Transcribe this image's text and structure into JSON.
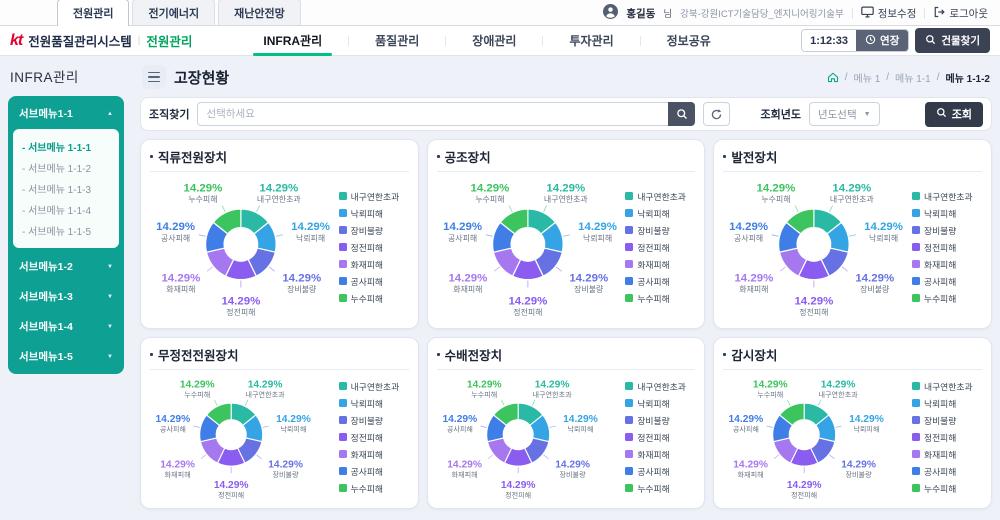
{
  "header": {
    "tabs": [
      {
        "label": "전원관리",
        "active": true
      },
      {
        "label": "전기에너지",
        "active": false
      },
      {
        "label": "재난안전망",
        "active": false
      }
    ],
    "user": {
      "name": "홍길동",
      "suffix": "님",
      "dept": "강북-강원ICT기술담당_엔지니어링기술부"
    },
    "actions": {
      "edit_info": "정보수정",
      "logout": "로그아웃"
    }
  },
  "appbar": {
    "logo": "kt",
    "system_title": "전원품질관리시스템",
    "module": "전원관리",
    "nav": [
      {
        "label": "INFRA관리",
        "active": true
      },
      {
        "label": "품질관리",
        "active": false
      },
      {
        "label": "장애관리",
        "active": false
      },
      {
        "label": "투자관리",
        "active": false
      },
      {
        "label": "정보공유",
        "active": false
      }
    ],
    "session_timer": "1:12:33",
    "extend_label": "연장",
    "building_search_label": "건물찾기"
  },
  "sidebar": {
    "title": "INFRA관리",
    "item_prefix": "- ",
    "menus": [
      {
        "label": "서브메뉴1-1",
        "expanded": true,
        "children": [
          {
            "label": "서브메뉴 1-1-1",
            "active": true
          },
          {
            "label": "서브메뉴 1-1-2",
            "active": false
          },
          {
            "label": "서브메뉴 1-1-3",
            "active": false
          },
          {
            "label": "서브메뉴 1-1-4",
            "active": false
          },
          {
            "label": "서브메뉴 1-1-5",
            "active": false
          }
        ]
      },
      {
        "label": "서브메뉴1-2",
        "expanded": false,
        "children": []
      },
      {
        "label": "서브메뉴1-3",
        "expanded": false,
        "children": []
      },
      {
        "label": "서브메뉴1-4",
        "expanded": false,
        "children": []
      },
      {
        "label": "서브메뉴1-5",
        "expanded": false,
        "children": []
      }
    ]
  },
  "content": {
    "page_title": "고장현황",
    "breadcrumb": [
      "메뉴 1",
      "메뉴 1-1",
      "메뉴 1-1-2"
    ],
    "filter": {
      "org_label": "조직찾기",
      "org_placeholder": "선택하세요",
      "year_label": "조회년도",
      "year_value": "년도선택",
      "search_label": "조회"
    }
  },
  "chart_colors": [
    "#29b9a4",
    "#34a4e4",
    "#6672e4",
    "#8a5cf0",
    "#a678f0",
    "#3f7ee6",
    "#3cc45e"
  ],
  "chart_data": [
    {
      "type": "pie",
      "title": "직류전원장치",
      "unit": "%",
      "legend_position": "right",
      "categories": [
        "내구연한초과",
        "낙뢰피해",
        "장비불량",
        "정전피해",
        "화재피해",
        "공사피해",
        "누수피해"
      ],
      "values": [
        14.29,
        14.29,
        14.29,
        14.29,
        14.29,
        14.29,
        14.29
      ],
      "colors": [
        "#29b9a4",
        "#34a4e4",
        "#6672e4",
        "#8a5cf0",
        "#a678f0",
        "#3f7ee6",
        "#3cc45e"
      ]
    },
    {
      "type": "pie",
      "title": "공조장치",
      "unit": "%",
      "legend_position": "right",
      "categories": [
        "내구연한초과",
        "낙뢰피해",
        "장비불량",
        "정전피해",
        "화재피해",
        "공사피해",
        "누수피해"
      ],
      "values": [
        14.29,
        14.29,
        14.29,
        14.29,
        14.29,
        14.29,
        14.29
      ],
      "colors": [
        "#29b9a4",
        "#34a4e4",
        "#6672e4",
        "#8a5cf0",
        "#a678f0",
        "#3f7ee6",
        "#3cc45e"
      ]
    },
    {
      "type": "pie",
      "title": "발전장치",
      "unit": "%",
      "legend_position": "right",
      "categories": [
        "내구연한초과",
        "낙뢰피해",
        "장비불량",
        "정전피해",
        "화재피해",
        "공사피해",
        "누수피해"
      ],
      "values": [
        14.29,
        14.29,
        14.29,
        14.29,
        14.29,
        14.29,
        14.29
      ],
      "colors": [
        "#29b9a4",
        "#34a4e4",
        "#6672e4",
        "#8a5cf0",
        "#a678f0",
        "#3f7ee6",
        "#3cc45e"
      ]
    },
    {
      "type": "pie",
      "title": "무정전전원장치",
      "unit": "%",
      "legend_position": "right",
      "categories": [
        "내구연한초과",
        "낙뢰피해",
        "장비불량",
        "정전피해",
        "화재피해",
        "공사피해",
        "누수피해"
      ],
      "values": [
        14.29,
        14.29,
        14.29,
        14.29,
        14.29,
        14.29,
        14.29
      ],
      "colors": [
        "#29b9a4",
        "#34a4e4",
        "#6672e4",
        "#8a5cf0",
        "#a678f0",
        "#3f7ee6",
        "#3cc45e"
      ]
    },
    {
      "type": "pie",
      "title": "수배전장치",
      "unit": "%",
      "legend_position": "right",
      "categories": [
        "내구연한초과",
        "낙뢰피해",
        "장비불량",
        "정전피해",
        "화재피해",
        "공사피해",
        "누수피해"
      ],
      "values": [
        14.29,
        14.29,
        14.29,
        14.29,
        14.29,
        14.29,
        14.29
      ],
      "colors": [
        "#29b9a4",
        "#34a4e4",
        "#6672e4",
        "#8a5cf0",
        "#a678f0",
        "#3f7ee6",
        "#3cc45e"
      ]
    },
    {
      "type": "pie",
      "title": "감시장치",
      "unit": "%",
      "legend_position": "right",
      "categories": [
        "내구연한초과",
        "낙뢰피해",
        "장비불량",
        "정전피해",
        "화재피해",
        "공사피해",
        "누수피해"
      ],
      "values": [
        14.29,
        14.29,
        14.29,
        14.29,
        14.29,
        14.29,
        14.29
      ],
      "colors": [
        "#29b9a4",
        "#34a4e4",
        "#6672e4",
        "#8a5cf0",
        "#a678f0",
        "#3f7ee6",
        "#3cc45e"
      ]
    }
  ]
}
